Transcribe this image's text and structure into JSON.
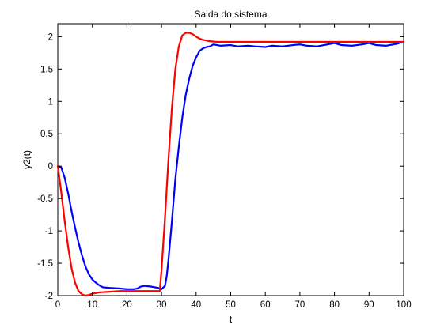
{
  "chart_data": {
    "type": "line",
    "title": "Saida do sistema",
    "xlabel": "t",
    "ylabel": "y2(t)",
    "xlim": [
      0,
      100
    ],
    "ylim": [
      -2,
      2.2
    ],
    "xticks": [
      0,
      10,
      20,
      30,
      40,
      50,
      60,
      70,
      80,
      90,
      100
    ],
    "yticks": [
      -2,
      -1.5,
      -1,
      -0.5,
      0,
      0.5,
      1,
      1.5,
      2
    ],
    "ytick_labels": [
      "-2",
      "-1.5",
      "-1",
      "-0.5",
      "0",
      "0.5",
      "1",
      "1.5",
      "2"
    ],
    "grid": false,
    "series": [
      {
        "color": "#0000ff",
        "x": [
          0,
          1,
          2,
          3,
          4,
          5,
          6,
          7,
          8,
          9,
          10,
          11,
          12,
          13,
          15,
          18,
          20,
          22,
          23,
          24,
          25,
          27,
          29,
          30,
          31,
          31.5,
          32,
          33,
          34,
          35,
          36,
          37,
          38,
          39,
          40,
          41,
          42,
          43,
          44,
          45,
          47,
          50,
          52,
          55,
          57,
          60,
          62,
          65,
          68,
          70,
          72,
          75,
          78,
          80,
          82,
          85,
          88,
          90,
          92,
          95,
          97,
          98,
          100
        ],
        "y": [
          0,
          -0.02,
          -0.18,
          -0.42,
          -0.7,
          -0.95,
          -1.18,
          -1.38,
          -1.55,
          -1.67,
          -1.75,
          -1.8,
          -1.84,
          -1.87,
          -1.88,
          -1.89,
          -1.9,
          -1.9,
          -1.89,
          -1.86,
          -1.85,
          -1.86,
          -1.88,
          -1.9,
          -1.85,
          -1.7,
          -1.45,
          -0.85,
          -0.2,
          0.3,
          0.75,
          1.1,
          1.35,
          1.55,
          1.68,
          1.78,
          1.82,
          1.84,
          1.85,
          1.88,
          1.86,
          1.87,
          1.85,
          1.86,
          1.85,
          1.84,
          1.86,
          1.85,
          1.87,
          1.88,
          1.86,
          1.85,
          1.88,
          1.9,
          1.87,
          1.86,
          1.88,
          1.9,
          1.87,
          1.86,
          1.88,
          1.89,
          1.92
        ]
      },
      {
        "color": "#ff0000",
        "x": [
          0,
          1,
          2,
          3,
          4,
          5,
          6,
          7,
          8,
          9,
          10,
          12,
          15,
          18,
          20,
          25,
          28,
          29.5,
          30,
          31,
          32,
          33,
          34,
          35,
          36,
          37,
          38,
          39,
          40,
          41,
          42,
          44,
          46,
          48,
          50,
          55,
          60,
          70,
          80,
          90,
          100
        ],
        "y": [
          0,
          -0.4,
          -0.85,
          -1.25,
          -1.58,
          -1.8,
          -1.93,
          -1.98,
          -2.0,
          -1.99,
          -1.97,
          -1.95,
          -1.94,
          -1.93,
          -1.93,
          -1.93,
          -1.93,
          -1.93,
          -1.6,
          -0.8,
          0.1,
          0.9,
          1.5,
          1.85,
          2.02,
          2.06,
          2.06,
          2.04,
          2.0,
          1.97,
          1.95,
          1.93,
          1.92,
          1.92,
          1.92,
          1.92,
          1.92,
          1.92,
          1.92,
          1.92,
          1.92
        ]
      }
    ]
  }
}
